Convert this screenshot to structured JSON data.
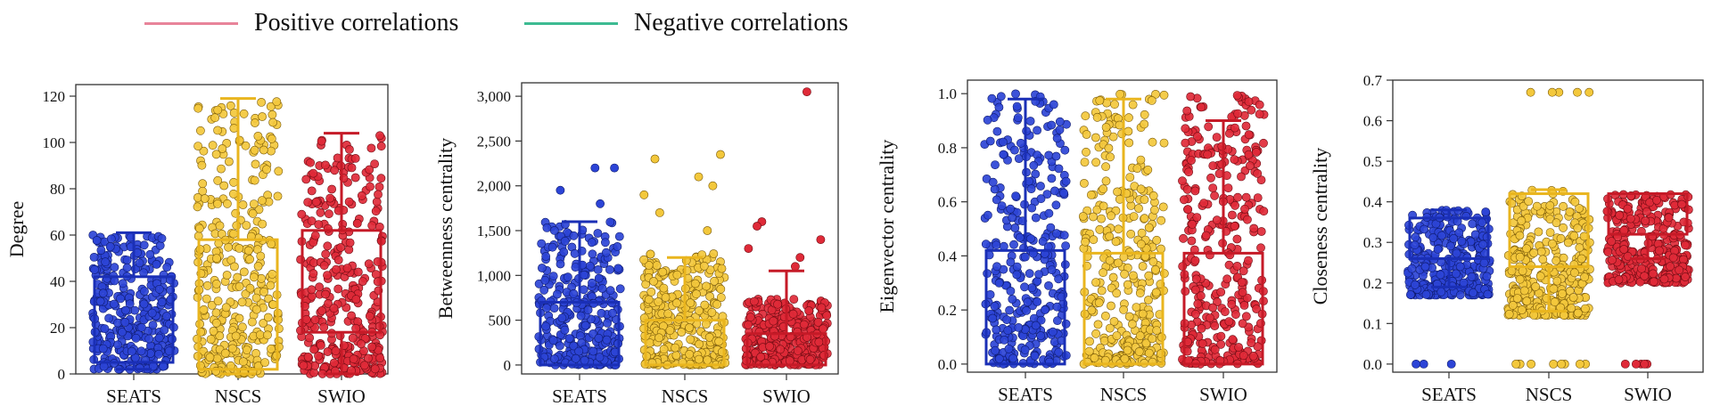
{
  "legend": {
    "positive": {
      "label": "Positive correlations",
      "color": "#e8849a"
    },
    "negative": {
      "label": "Negative correlations",
      "color": "#3dbb92"
    }
  },
  "colors": {
    "SEATS": "#1a2fb6",
    "NSCS": "#e9b51e",
    "SWIO": "#c51a27"
  },
  "chart_data": [
    {
      "type": "scatter",
      "title": "",
      "ylabel": "Degree",
      "categories": [
        "SEATS",
        "NSCS",
        "SWIO"
      ],
      "ylim": [
        0,
        125
      ],
      "yticks": [
        0,
        20,
        40,
        60,
        80,
        100,
        120
      ],
      "tick_labels": [
        "0",
        "20",
        "40",
        "60",
        "80",
        "100",
        "120"
      ],
      "boxes": [
        {
          "name": "SEATS",
          "whisker_low": 2,
          "q1": 5,
          "q3": 42,
          "whisker_high": 61,
          "points_low": 2,
          "points_high": 60,
          "extra_points": []
        },
        {
          "name": "NSCS",
          "whisker_low": 0,
          "q1": 2,
          "q3": 58,
          "whisker_high": 119,
          "points_low": 0,
          "points_high": 119,
          "extra_points": []
        },
        {
          "name": "SWIO",
          "whisker_low": 0,
          "q1": 18,
          "q3": 62,
          "whisker_high": 104,
          "points_low": 0,
          "points_high": 103,
          "extra_points": []
        }
      ]
    },
    {
      "type": "scatter",
      "title": "",
      "ylabel": "Betweenness centrality",
      "categories": [
        "SEATS",
        "NSCS",
        "SWIO"
      ],
      "ylim": [
        -100,
        3150
      ],
      "yticks": [
        0,
        500,
        1000,
        1500,
        2000,
        2500,
        3000
      ],
      "tick_labels": [
        "0",
        "500",
        "1,000",
        "1,500",
        "2,000",
        "2,500",
        "3,000"
      ],
      "boxes": [
        {
          "name": "SEATS",
          "whisker_low": 0,
          "q1": 0,
          "q3": 700,
          "whisker_high": 1600,
          "points_low": 0,
          "points_high": 1600,
          "extra_points": [
            2200,
            2200,
            1950,
            1800
          ]
        },
        {
          "name": "NSCS",
          "whisker_low": 0,
          "q1": 0,
          "q3": 500,
          "whisker_high": 1200,
          "points_low": 0,
          "points_high": 1250,
          "extra_points": [
            2350,
            2300,
            2100,
            2000,
            1900,
            1700,
            1500
          ]
        },
        {
          "name": "SWIO",
          "whisker_low": 0,
          "q1": 0,
          "q3": 350,
          "whisker_high": 1050,
          "points_low": 0,
          "points_high": 750,
          "extra_points": [
            3050,
            1600,
            1550,
            1400,
            1300,
            1200,
            1100
          ]
        }
      ]
    },
    {
      "type": "scatter",
      "title": "",
      "ylabel": "Eigenvector centrality",
      "categories": [
        "SEATS",
        "NSCS",
        "SWIO"
      ],
      "ylim": [
        -0.03,
        1.05
      ],
      "yticks": [
        0.0,
        0.2,
        0.4,
        0.6,
        0.8,
        1.0
      ],
      "tick_labels": [
        "0.0",
        "0.2",
        "0.4",
        "0.6",
        "0.8",
        "1.0"
      ],
      "boxes": [
        {
          "name": "SEATS",
          "whisker_low": 0,
          "q1": 0,
          "q3": 0.42,
          "whisker_high": 0.98,
          "points_low": 0,
          "points_high": 1.0,
          "extra_points": []
        },
        {
          "name": "NSCS",
          "whisker_low": 0,
          "q1": 0,
          "q3": 0.41,
          "whisker_high": 0.98,
          "points_low": 0,
          "points_high": 1.0,
          "extra_points": []
        },
        {
          "name": "SWIO",
          "whisker_low": 0,
          "q1": 0,
          "q3": 0.41,
          "whisker_high": 0.9,
          "points_low": 0,
          "points_high": 1.0,
          "extra_points": []
        }
      ]
    },
    {
      "type": "scatter",
      "title": "",
      "ylabel": "Closeness centrality",
      "categories": [
        "SEATS",
        "NSCS",
        "SWIO"
      ],
      "ylim": [
        -0.02,
        0.7
      ],
      "yticks": [
        0.0,
        0.1,
        0.2,
        0.3,
        0.4,
        0.5,
        0.6,
        0.7
      ],
      "tick_labels": [
        "0.0",
        "0.1",
        "0.2",
        "0.3",
        "0.4",
        "0.5",
        "0.6",
        "0.7"
      ],
      "boxes": [
        {
          "name": "SEATS",
          "whisker_low": 0.19,
          "q1": 0.26,
          "q3": 0.36,
          "whisker_high": 0.38,
          "points_low": 0.17,
          "points_high": 0.38,
          "extra_points": [
            0,
            0,
            0
          ]
        },
        {
          "name": "NSCS",
          "whisker_low": 0.13,
          "q1": 0.24,
          "q3": 0.42,
          "whisker_high": 0.43,
          "points_low": 0.12,
          "points_high": 0.43,
          "extra_points": [
            0.67,
            0.67,
            0.67,
            0.67,
            0.67,
            0,
            0,
            0,
            0,
            0,
            0,
            0,
            0,
            0
          ]
        },
        {
          "name": "SWIO",
          "whisker_low": 0.26,
          "q1": 0.32,
          "q3": 0.42,
          "whisker_high": 0.42,
          "points_low": 0.2,
          "points_high": 0.42,
          "extra_points": [
            0,
            0,
            0,
            0,
            0
          ]
        }
      ]
    }
  ]
}
